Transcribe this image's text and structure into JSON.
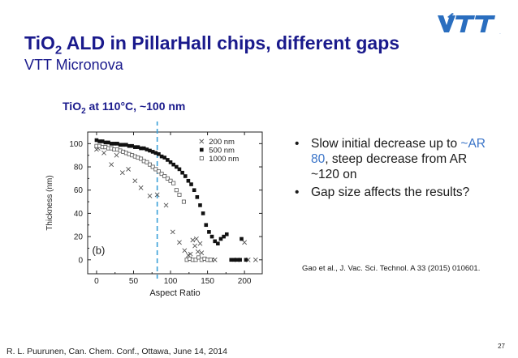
{
  "title": {
    "main_before": "TiO",
    "main_sub": "2",
    "main_after": " ALD in PillarHall chips, different gaps",
    "subtitle": "VTT Micronova"
  },
  "logo": {
    "text": "VTT",
    "icon": "vtt-logo-icon",
    "color": "#2a6ebf"
  },
  "chart_heading": {
    "before": "TiO",
    "sub": "2",
    "after": " at 110°C, ~100 nm",
    "color": "#1a1a8c"
  },
  "chart_data": {
    "type": "scatter",
    "xlabel": "Aspect Ratio",
    "ylabel": "Thickness (nm)",
    "xlim": [
      -12,
      224
    ],
    "ylim": [
      -12,
      110
    ],
    "xticks": [
      0,
      50,
      100,
      150,
      200
    ],
    "yticks": [
      0,
      20,
      40,
      60,
      80,
      100
    ],
    "annotation": "(b)",
    "reference_line": {
      "x": 82,
      "style": "dashed",
      "color": "#3aa0d8"
    },
    "legend_position": "top-right",
    "series": [
      {
        "name": "200 nm",
        "marker": "x",
        "points": [
          [
            0,
            95
          ],
          [
            2,
            96
          ],
          [
            10,
            92
          ],
          [
            20,
            82
          ],
          [
            27,
            90
          ],
          [
            35,
            75
          ],
          [
            43,
            78
          ],
          [
            52,
            68
          ],
          [
            60,
            62
          ],
          [
            72,
            55
          ],
          [
            82,
            56
          ],
          [
            94,
            47
          ],
          [
            103,
            24
          ],
          [
            112,
            15
          ],
          [
            119,
            8
          ],
          [
            124,
            4
          ],
          [
            127,
            5
          ],
          [
            130,
            17
          ],
          [
            133,
            12
          ],
          [
            135,
            18
          ],
          [
            137,
            7
          ],
          [
            140,
            14
          ],
          [
            142,
            6
          ],
          [
            156,
            0
          ],
          [
            160,
            0
          ],
          [
            190,
            0
          ],
          [
            200,
            15
          ],
          [
            205,
            0
          ],
          [
            215,
            0
          ]
        ]
      },
      {
        "name": "500 nm",
        "marker": "filled-square",
        "points": [
          [
            0,
            103
          ],
          [
            4,
            102
          ],
          [
            8,
            102
          ],
          [
            12,
            101
          ],
          [
            16,
            101
          ],
          [
            20,
            100
          ],
          [
            24,
            100
          ],
          [
            28,
            100
          ],
          [
            32,
            99
          ],
          [
            36,
            99
          ],
          [
            40,
            99
          ],
          [
            44,
            98
          ],
          [
            48,
            98
          ],
          [
            52,
            97
          ],
          [
            56,
            97
          ],
          [
            60,
            96
          ],
          [
            64,
            96
          ],
          [
            68,
            95
          ],
          [
            72,
            94
          ],
          [
            76,
            93
          ],
          [
            80,
            92
          ],
          [
            84,
            91
          ],
          [
            88,
            89
          ],
          [
            92,
            88
          ],
          [
            96,
            86
          ],
          [
            100,
            84
          ],
          [
            104,
            82
          ],
          [
            108,
            80
          ],
          [
            112,
            78
          ],
          [
            116,
            75
          ],
          [
            120,
            72
          ],
          [
            124,
            68
          ],
          [
            128,
            65
          ],
          [
            132,
            60
          ],
          [
            136,
            54
          ],
          [
            140,
            47
          ],
          [
            144,
            40
          ],
          [
            148,
            30
          ],
          [
            152,
            24
          ],
          [
            156,
            20
          ],
          [
            160,
            16
          ],
          [
            164,
            14
          ],
          [
            168,
            18
          ],
          [
            172,
            20
          ],
          [
            176,
            22
          ],
          [
            182,
            0
          ],
          [
            186,
            0
          ],
          [
            190,
            0
          ],
          [
            194,
            0
          ],
          [
            196,
            18
          ],
          [
            202,
            0
          ]
        ]
      },
      {
        "name": "1000 nm",
        "marker": "open-square",
        "points": [
          [
            0,
            98
          ],
          [
            4,
            98
          ],
          [
            8,
            97
          ],
          [
            12,
            97
          ],
          [
            16,
            96
          ],
          [
            20,
            96
          ],
          [
            24,
            95
          ],
          [
            28,
            95
          ],
          [
            32,
            94
          ],
          [
            36,
            93
          ],
          [
            40,
            92
          ],
          [
            44,
            91
          ],
          [
            48,
            90
          ],
          [
            52,
            89
          ],
          [
            56,
            88
          ],
          [
            60,
            87
          ],
          [
            64,
            85
          ],
          [
            68,
            84
          ],
          [
            72,
            82
          ],
          [
            76,
            80
          ],
          [
            80,
            78
          ],
          [
            84,
            76
          ],
          [
            88,
            74
          ],
          [
            92,
            72
          ],
          [
            96,
            70
          ],
          [
            100,
            68
          ],
          [
            104,
            66
          ],
          [
            108,
            60
          ],
          [
            112,
            56
          ],
          [
            118,
            50
          ],
          [
            122,
            0
          ],
          [
            126,
            1
          ],
          [
            130,
            0
          ],
          [
            134,
            0
          ],
          [
            138,
            2
          ],
          [
            142,
            0
          ],
          [
            146,
            1
          ],
          [
            150,
            0
          ],
          [
            154,
            0
          ]
        ]
      }
    ]
  },
  "bullets": {
    "b1_before": "Slow initial decrease up to ",
    "b1_highlight": "~AR 80",
    "b1_after": ", steep decrease from AR ~120 on",
    "b2": "Gap size affects the results?",
    "highlight_color": "#3a74c8"
  },
  "citation": "Gao et al., J. Vac. Sci. Technol. A 33 (2015) 010601.",
  "footer": "R. L. Puurunen, Can. Chem. Conf., Ottawa, June 14, 2014",
  "page_number": "27"
}
